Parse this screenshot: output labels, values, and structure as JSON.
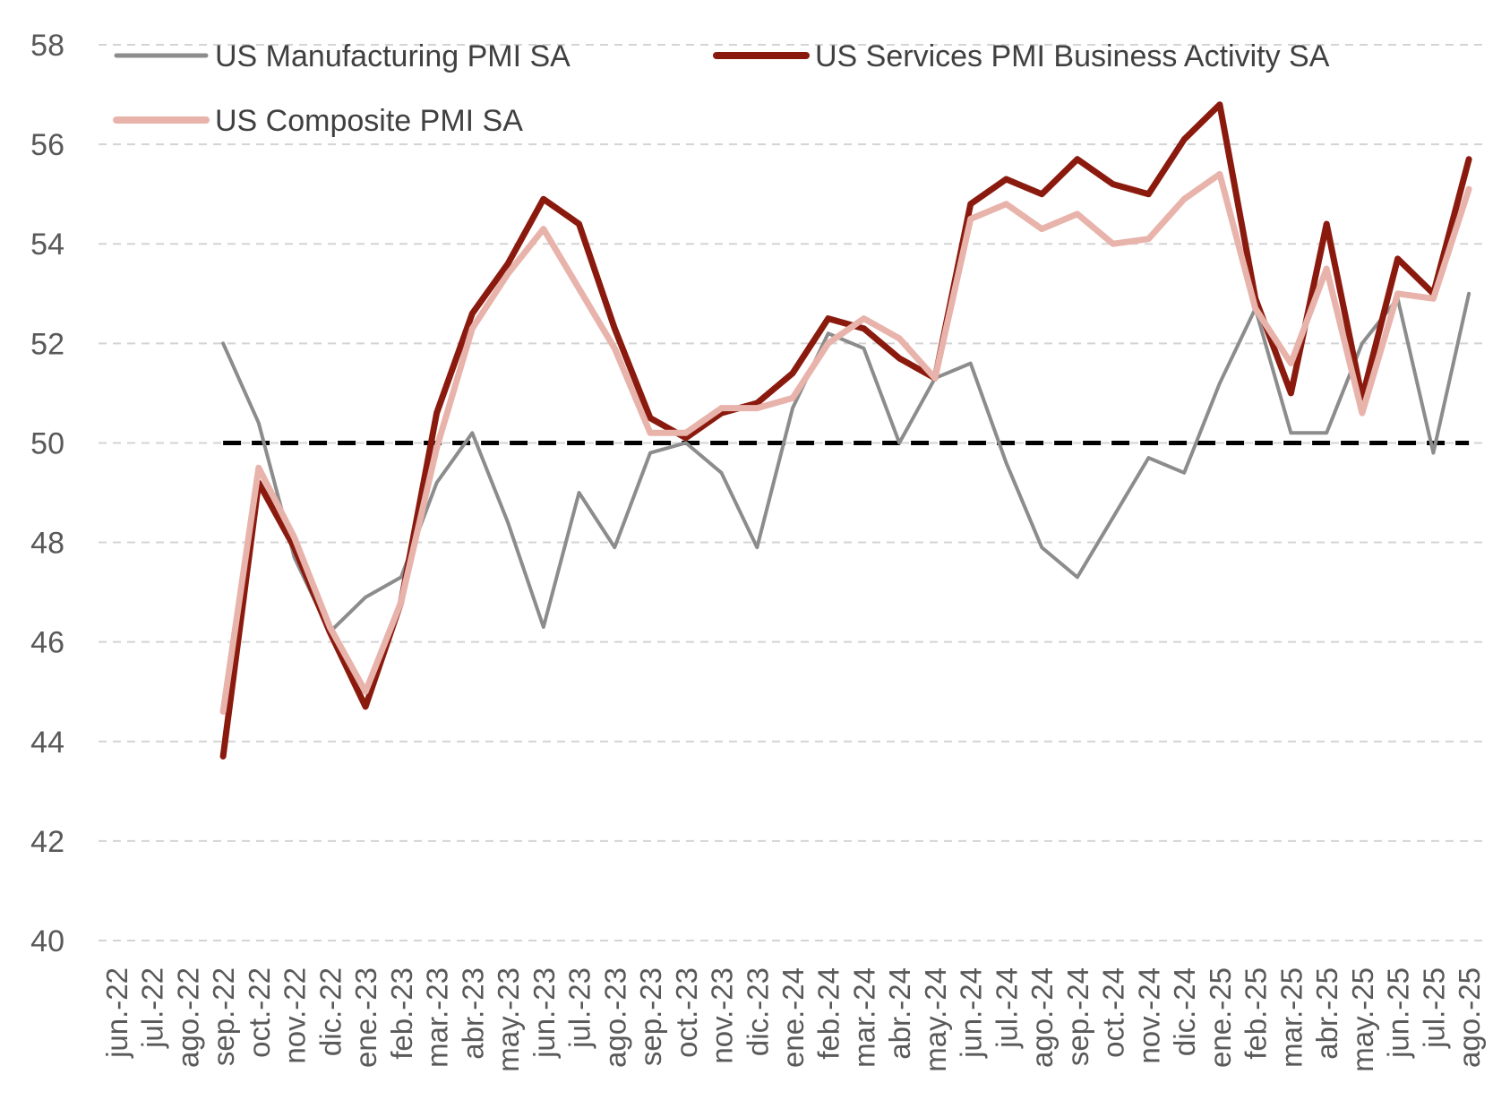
{
  "chart_data": {
    "type": "line",
    "title": "",
    "xlabel": "",
    "ylabel": "",
    "ylim": [
      40,
      58
    ],
    "yticks": [
      40,
      42,
      44,
      46,
      48,
      50,
      52,
      54,
      56,
      58
    ],
    "grid": "horizontal dashed",
    "legend": "top",
    "reference_line": {
      "y": 50,
      "style": "dashed",
      "color": "#000000",
      "x_from": "sep.-22",
      "x_to": "ago.-25"
    },
    "categories": [
      "jun.-22",
      "jul.-22",
      "ago.-22",
      "sep.-22",
      "oct.-22",
      "nov.-22",
      "dic.-22",
      "ene.-23",
      "feb.-23",
      "mar.-23",
      "abr.-23",
      "may.-23",
      "jun.-23",
      "jul.-23",
      "ago.-23",
      "sep.-23",
      "oct.-23",
      "nov.-23",
      "dic.-23",
      "ene.-24",
      "feb.-24",
      "mar.-24",
      "abr.-24",
      "may.-24",
      "jun.-24",
      "jul.-24",
      "ago.-24",
      "sep.-24",
      "oct.-24",
      "nov.-24",
      "dic.-24",
      "ene.-25",
      "feb.-25",
      "mar.-25",
      "abr.-25",
      "may.-25",
      "jun.-25",
      "jul.-25",
      "ago.-25"
    ],
    "series": [
      {
        "name": "US Manufacturing PMI SA",
        "color": "#8c8c8c",
        "values": [
          null,
          null,
          null,
          52.0,
          50.4,
          47.7,
          46.2,
          46.9,
          47.3,
          49.2,
          50.2,
          48.4,
          46.3,
          49.0,
          47.9,
          49.8,
          50.0,
          49.4,
          47.9,
          50.7,
          52.2,
          51.9,
          50.0,
          51.3,
          51.6,
          49.6,
          47.9,
          47.3,
          48.5,
          49.7,
          49.4,
          51.2,
          52.7,
          50.2,
          50.2,
          52.0,
          52.9,
          49.8,
          53.0
        ]
      },
      {
        "name": "US Services PMI Business Activity SA",
        "color": "#8b1a0e",
        "values": [
          null,
          null,
          null,
          43.7,
          49.2,
          47.9,
          46.2,
          44.7,
          46.8,
          50.6,
          52.6,
          53.6,
          54.9,
          54.4,
          52.3,
          50.5,
          50.1,
          50.6,
          50.8,
          51.4,
          52.5,
          52.3,
          51.7,
          51.3,
          54.8,
          55.3,
          55.0,
          55.7,
          55.2,
          55.0,
          56.1,
          56.8,
          52.9,
          51.0,
          54.4,
          50.9,
          53.7,
          53.0,
          55.7
        ]
      },
      {
        "name": "US Composite PMI SA",
        "color": "#e8b3ab",
        "values": [
          null,
          null,
          null,
          44.6,
          49.5,
          48.1,
          46.3,
          45.0,
          46.8,
          49.9,
          52.3,
          53.4,
          54.3,
          53.1,
          51.9,
          50.2,
          50.2,
          50.7,
          50.7,
          50.9,
          52.0,
          52.5,
          52.1,
          51.3,
          54.5,
          54.8,
          54.3,
          54.6,
          54.0,
          54.1,
          54.9,
          55.4,
          52.7,
          51.6,
          53.5,
          50.6,
          53.0,
          52.9,
          55.1
        ]
      }
    ]
  }
}
